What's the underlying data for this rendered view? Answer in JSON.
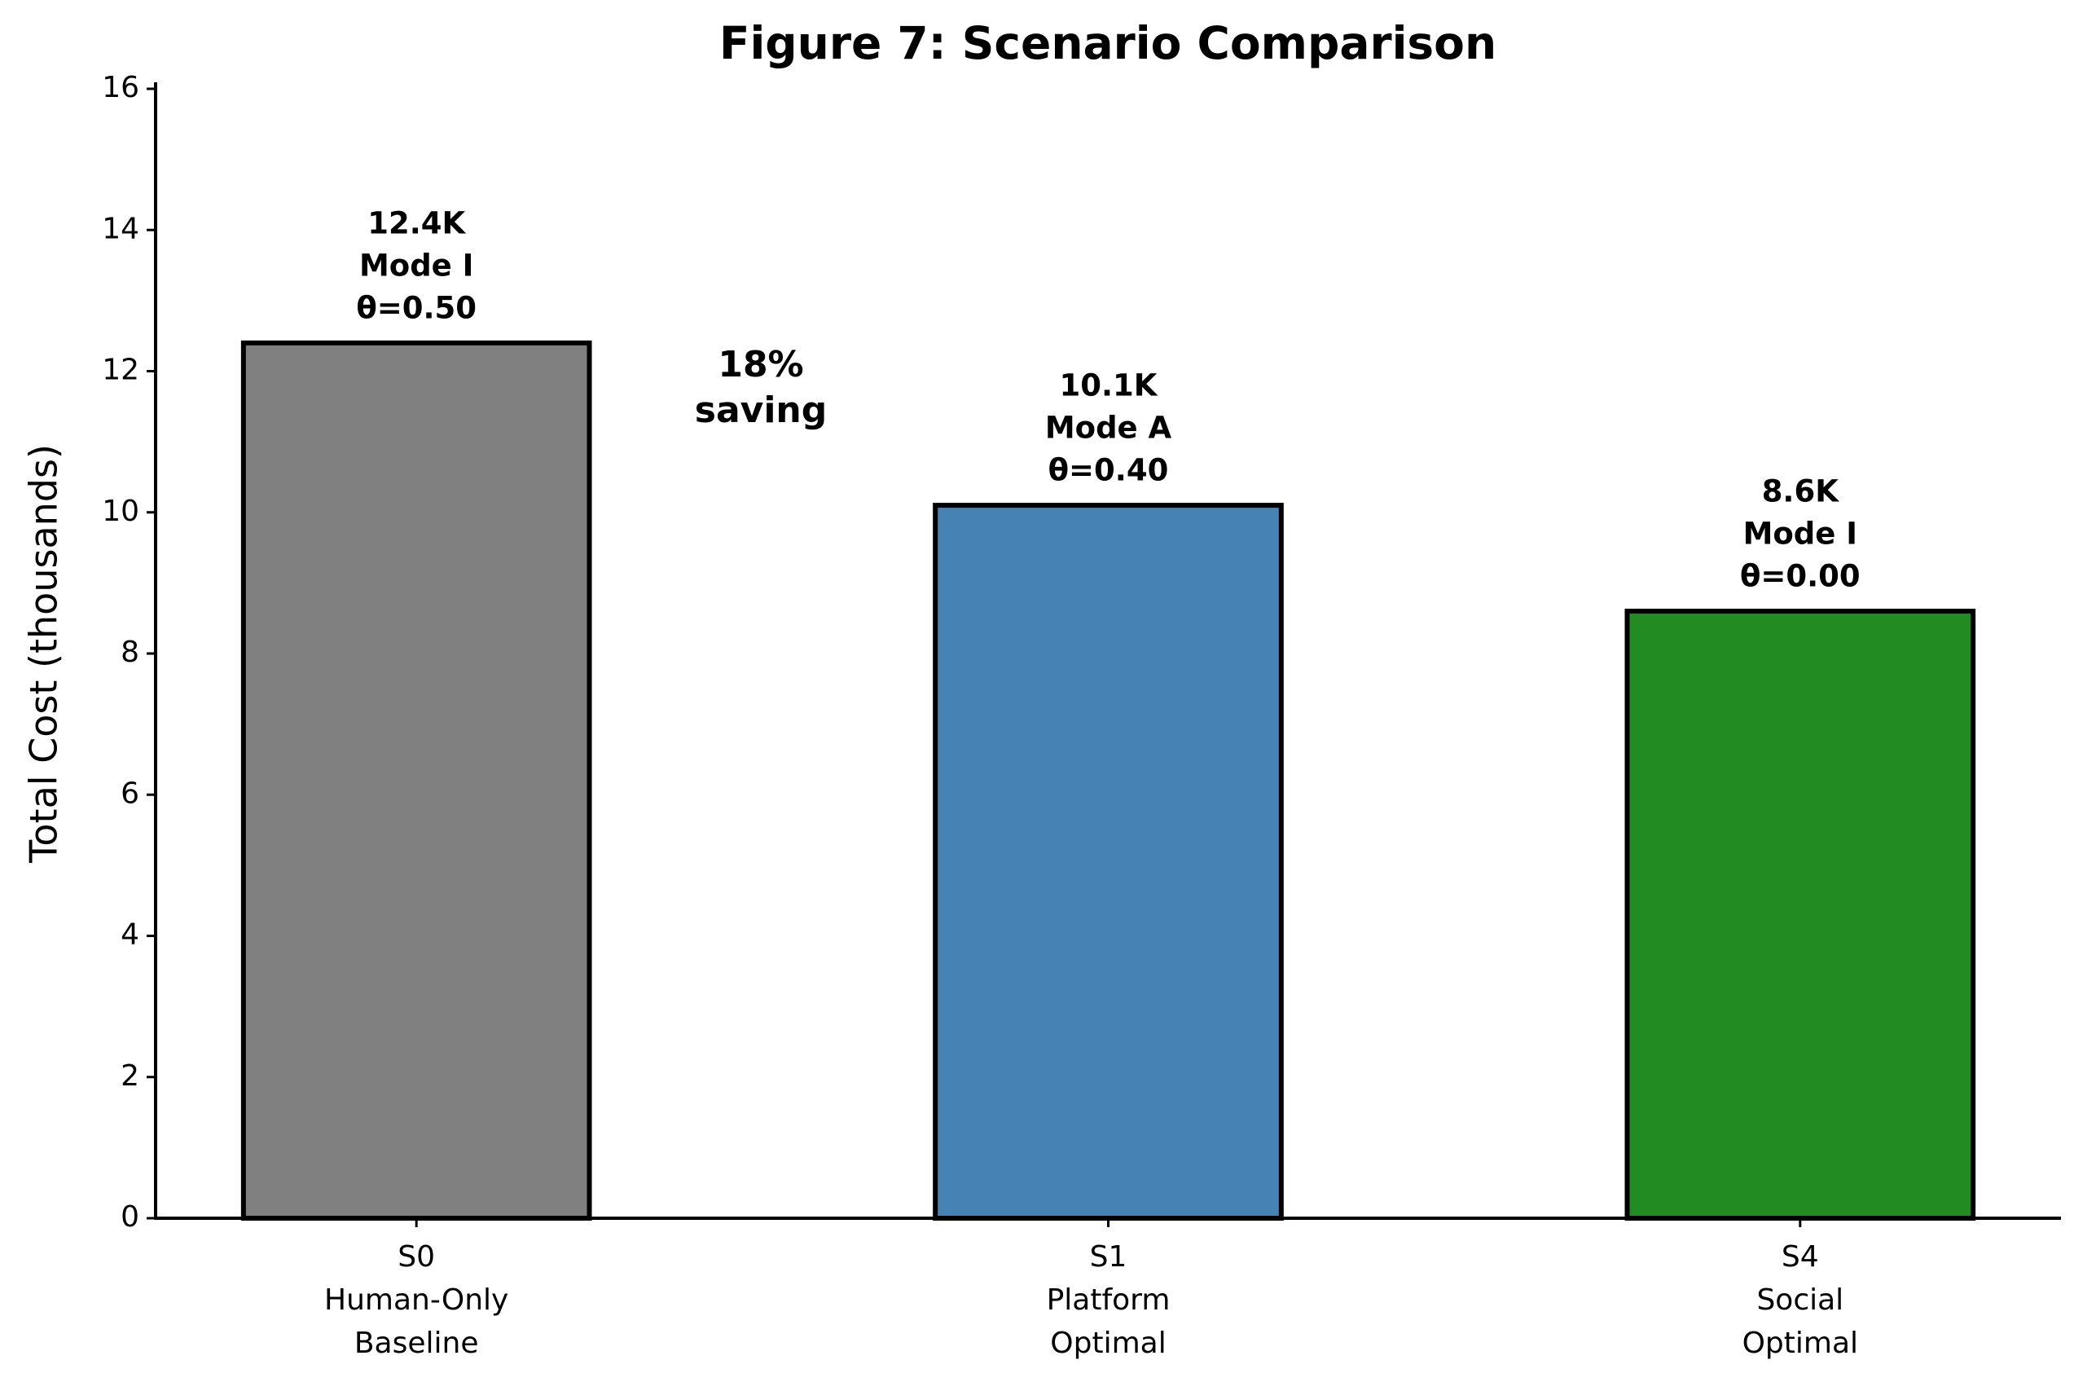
{
  "chart_data": {
    "type": "bar",
    "title": "Figure 7: Scenario Comparison",
    "y_label": "Total Cost (thousands)",
    "categories": [
      [
        "S0",
        "Human-Only",
        "Baseline"
      ],
      [
        "S1",
        "Platform",
        "Optimal"
      ],
      [
        "S4",
        "Social",
        "Optimal"
      ]
    ],
    "values": [
      12.4,
      10.1,
      8.6
    ],
    "value_labels": [
      "12.4K",
      "10.1K",
      "8.6K"
    ],
    "bar_annotations": [
      [
        "Mode I",
        "θ=0.50"
      ],
      [
        "Mode A",
        "θ=0.40"
      ],
      [
        "Mode I",
        "θ=0.00"
      ]
    ],
    "colors": [
      "#808080",
      "#4682b4",
      "#228b22"
    ],
    "edge_color": "#000000",
    "annotation": {
      "lines": [
        "18%",
        "saving"
      ],
      "color": "#008000"
    },
    "ylim": [
      0,
      16
    ],
    "yticks": [
      0,
      2,
      4,
      6,
      8,
      10,
      12,
      14,
      16
    ],
    "grid": false
  }
}
